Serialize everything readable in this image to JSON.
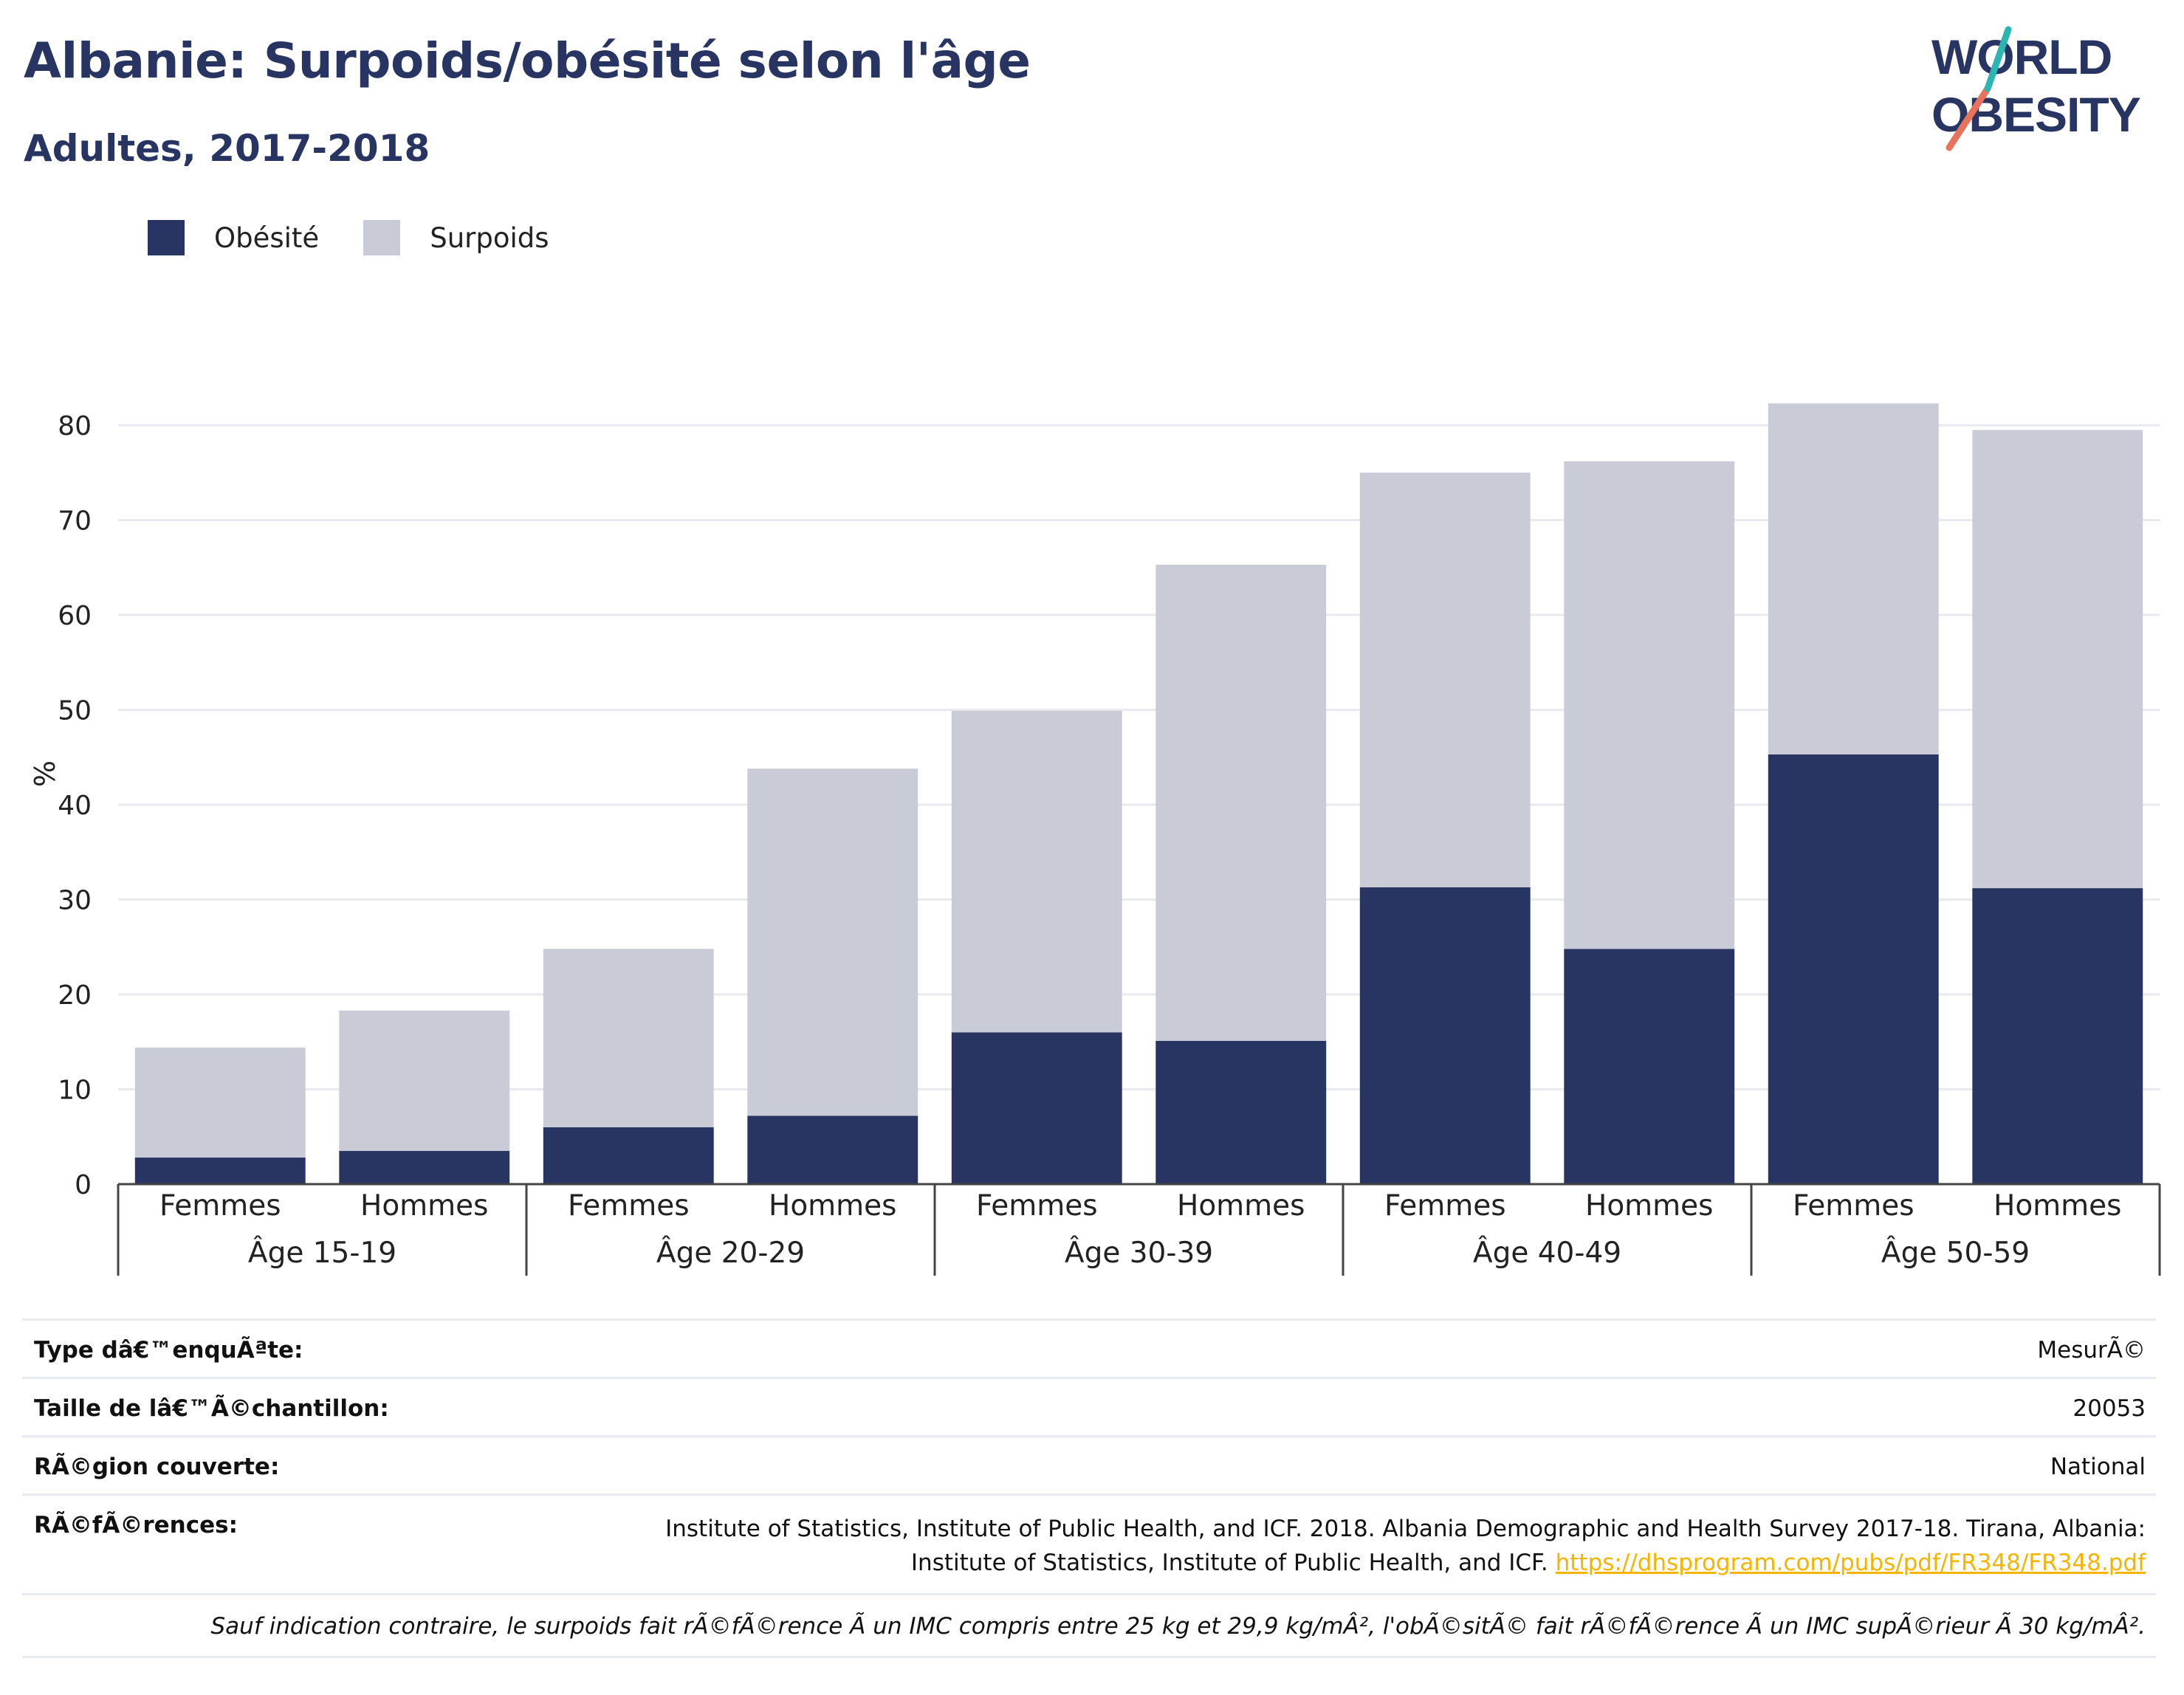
{
  "header": {
    "title": "Albanie: Surpoids/obésité selon l'âge",
    "subtitle": "Adultes, 2017-2018"
  },
  "logo": {
    "line1": "WORLD",
    "line2": "OBESITY"
  },
  "colors": {
    "obesity": "#283562",
    "overweight": "#c9cbd7",
    "accent_red": "#e8735c",
    "accent_teal": "#2bb6b4",
    "link": "#f4b400"
  },
  "chart_data": {
    "type": "bar",
    "stacked": true,
    "ylabel": "%",
    "ylim": [
      0,
      85
    ],
    "yticks": [
      "0",
      "10",
      "20",
      "30",
      "40",
      "50",
      "60",
      "70",
      "80"
    ],
    "grid": true,
    "legend_position": "top-left",
    "groups": [
      "Âge 15-19",
      "Âge 20-29",
      "Âge 30-39",
      "Âge 40-49",
      "Âge 50-59"
    ],
    "categories": [
      "Femmes",
      "Hommes",
      "Femmes",
      "Hommes",
      "Femmes",
      "Hommes",
      "Femmes",
      "Hommes",
      "Femmes",
      "Hommes"
    ],
    "series": [
      {
        "name": "Obésité",
        "values": [
          2.8,
          3.5,
          6.0,
          7.2,
          16.0,
          15.1,
          31.3,
          24.8,
          45.3,
          31.2
        ]
      },
      {
        "name": "Surpoids",
        "values": [
          11.6,
          14.8,
          18.8,
          36.6,
          33.9,
          50.2,
          43.7,
          51.4,
          37.0,
          48.3
        ]
      }
    ]
  },
  "info": {
    "rows": [
      {
        "label": "Type dâ€™enquÃªte:",
        "value": "MesurÃ©"
      },
      {
        "label": "Taille de lâ€™Ã©chantillon:",
        "value": "20053"
      },
      {
        "label": "RÃ©gion couverte:",
        "value": "National"
      }
    ],
    "ref_label": "RÃ©fÃ©rences:",
    "ref_line1": "Institute of Statistics, Institute of Public Health, and ICF. 2018. Albania Demographic and Health Survey 2017-18. Tirana, Albania:",
    "ref_line2": "Institute of Statistics, Institute of Public Health, and ICF.",
    "ref_link": "https://dhsprogram.com/pubs/pdf/FR348/FR348.pdf",
    "note": "Sauf indication contraire, le surpoids fait rÃ©fÃ©rence Ã  un IMC compris entre 25 kg et 29,9 kg/mÂ², l'obÃ©sitÃ© fait rÃ©fÃ©rence Ã  un IMC supÃ©rieur Ã  30 kg/mÂ²."
  }
}
